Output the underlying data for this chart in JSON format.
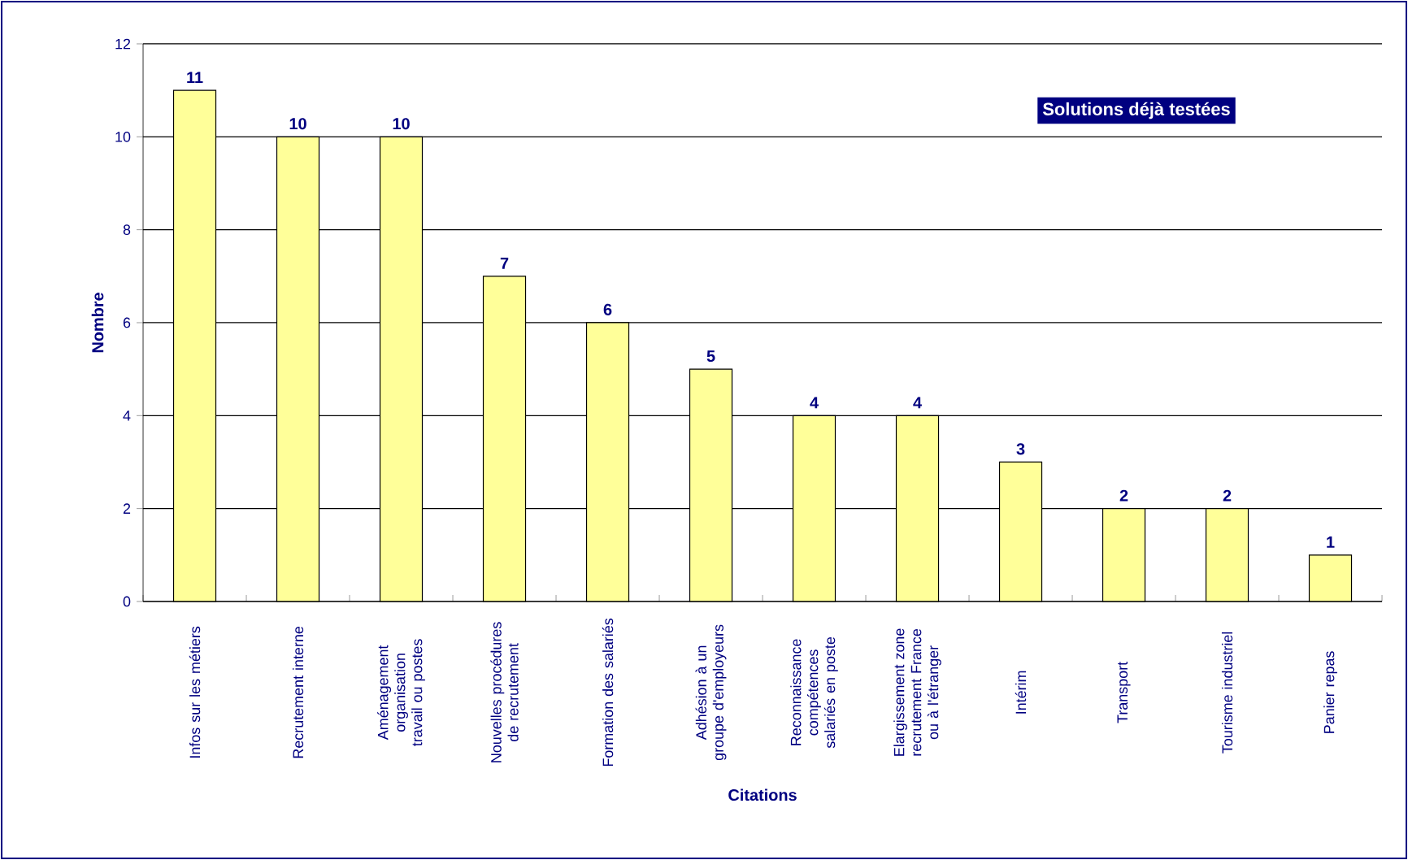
{
  "chart_data": {
    "type": "bar",
    "xlabel": "Citations",
    "ylabel": "Nombre",
    "categories": [
      "Infos sur les métiers",
      "Recrutement interne",
      "Aménagement organisation travail ou postes",
      "Nouvelles procédures de recrutement",
      "Formation des salariés",
      "Adhésion à un groupe d'employeurs",
      "Reconnaissance compétences salariés en poste",
      "Elargissement zone recrutement France ou à l'étranger",
      "Intérim",
      "Transport",
      "Tourisme industriel",
      "Panier repas"
    ],
    "values": [
      11,
      10,
      10,
      7,
      6,
      5,
      4,
      4,
      3,
      2,
      2,
      1
    ],
    "color": "#ffff99",
    "ylim": [
      0,
      12
    ],
    "yticks": [
      0,
      2,
      4,
      6,
      8,
      10,
      12
    ],
    "grid": "y",
    "data_labels": true,
    "annotations": [
      "Solutions déjà testées"
    ]
  }
}
